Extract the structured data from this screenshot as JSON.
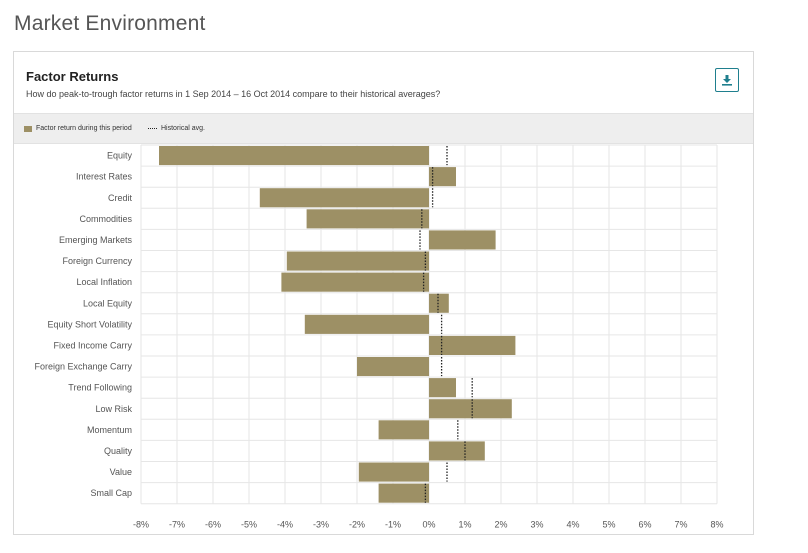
{
  "page_title": "Market Environment",
  "card": {
    "title": "Factor Returns",
    "subtitle": "How do peak-to-trough factor returns in 1 Sep 2014 – 16 Oct 2014 compare to their historical averages?",
    "download_icon": "download-icon"
  },
  "legend": {
    "bar_label": "Factor return during this period",
    "avg_label": "Historical avg."
  },
  "colors": {
    "bar": "#9d9065",
    "avg_line": "#222222",
    "accent": "#1f7f8e",
    "grid": "#e6e6e6"
  },
  "chart_data": {
    "type": "bar",
    "orientation": "horizontal",
    "title": "Factor Returns",
    "xlabel": "",
    "ylabel": "",
    "xlim": [
      -8,
      8
    ],
    "x_ticks": [
      "-8%",
      "-7%",
      "-6%",
      "-5%",
      "-4%",
      "-3%",
      "-2%",
      "-1%",
      "0%",
      "1%",
      "2%",
      "3%",
      "4%",
      "5%",
      "6%",
      "7%",
      "8%"
    ],
    "grid": true,
    "legend_position": "top-left",
    "categories": [
      "Equity",
      "Interest Rates",
      "Credit",
      "Commodities",
      "Emerging Markets",
      "Foreign Currency",
      "Local Inflation",
      "Local Equity",
      "Equity Short Volatility",
      "Fixed Income Carry",
      "Foreign Exchange Carry",
      "Trend Following",
      "Low Risk",
      "Momentum",
      "Quality",
      "Value",
      "Small Cap"
    ],
    "series": [
      {
        "name": "Factor return during this period",
        "values": [
          -7.5,
          0.75,
          -4.7,
          -3.4,
          1.85,
          -3.95,
          -4.1,
          0.55,
          -3.45,
          2.4,
          -2.0,
          0.75,
          2.3,
          -1.4,
          1.55,
          -1.95,
          -1.4
        ]
      },
      {
        "name": "Historical avg.",
        "values": [
          0.5,
          0.1,
          0.1,
          -0.2,
          -0.25,
          -0.1,
          -0.15,
          0.25,
          0.35,
          0.35,
          0.35,
          1.2,
          1.2,
          0.8,
          1.0,
          0.5,
          -0.1
        ]
      }
    ]
  }
}
